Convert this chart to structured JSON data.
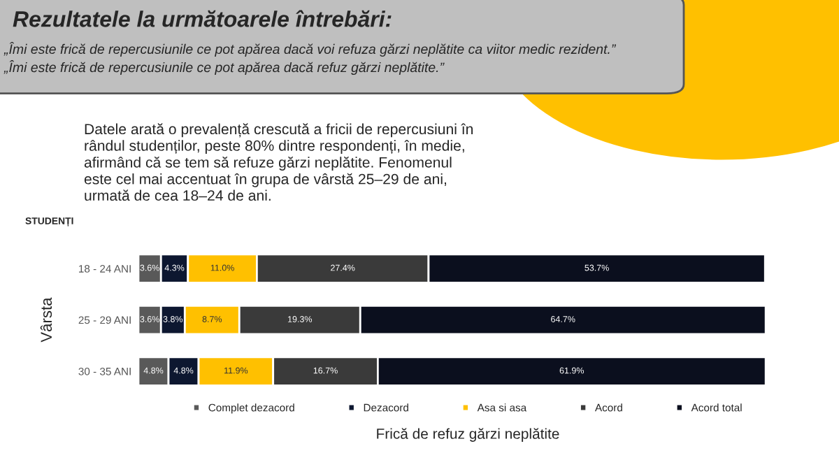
{
  "chart_data": {
    "type": "bar",
    "orientation": "horizontal",
    "stacked": true,
    "title": "Rezultatele la următoarele întrebări:",
    "subtitle": "„Îmi este frică de repercusiunile ce pot apărea dacă voi refuza gărzi neplătite ca viitor medic rezident.”\n„Îmi este frică de repercusiunile ce pot apărea dacă refuz gărzi neplătite.”",
    "annotations": [
      "Datele arată o prevalență crescută a fricii de repercusiuni în\nrândul studenților, peste 80% dintre respondenți, în medie,\nafirmând că se tem să refuze gărzi neplătite. Fenomenul\neste cel mai accentuat în grupa de vârstă 25–29 de ani,\nurmată de cea 18–24 de ani.",
      "STUDENȚI"
    ],
    "xlabel": "Frică de refuz gărzi neplătite",
    "ylabel": "Vârsta",
    "categories": [
      "18 - 24 ANI",
      "25 - 29 ANI",
      "30 - 35 ANI"
    ],
    "series": [
      {
        "name": "Complet dezacord",
        "color": "#595959",
        "values": [
          3.6,
          3.6,
          4.8
        ],
        "value_labels": [
          "3.6%",
          "3.6%",
          "4.8%"
        ]
      },
      {
        "name": "Dezacord",
        "color": "#0d1730",
        "values": [
          4.3,
          3.8,
          4.8
        ],
        "value_labels": [
          "4.3%",
          "3.8%",
          "4.8%"
        ]
      },
      {
        "name": "Asa si asa",
        "color": "#ffc000",
        "values": [
          11.0,
          8.7,
          11.9
        ],
        "value_labels": [
          "11.0%",
          "8.7%",
          "11.9%"
        ]
      },
      {
        "name": "Acord",
        "color": "#3a3a3a",
        "values": [
          27.4,
          19.3,
          16.7
        ],
        "value_labels": [
          "27.4%",
          "19.3%",
          "16.7%"
        ]
      },
      {
        "name": "Acord total",
        "color": "#0b0f1e",
        "values": [
          53.7,
          64.7,
          61.9
        ],
        "value_labels": [
          "53.7%",
          "64.7%",
          "61.9%"
        ]
      }
    ],
    "tick_labels": "y",
    "legend": "bottom",
    "grid": false
  }
}
